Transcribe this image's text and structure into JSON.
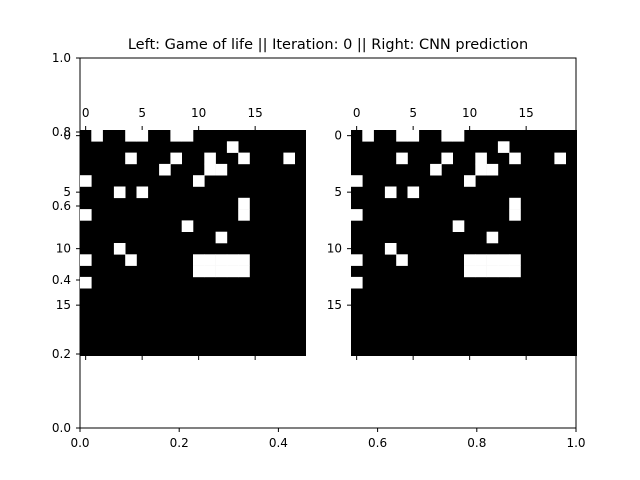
{
  "chart_data": {
    "type": "heatmap",
    "title": "Left: Game of life || Iteration: 0 || Right: CNN prediction",
    "outer_axes": {
      "xlim": [
        0.0,
        1.0
      ],
      "ylim": [
        0.0,
        1.0
      ],
      "x_ticks": [
        0.0,
        0.2,
        0.4,
        0.6,
        0.8,
        1.0
      ],
      "x_tick_labels": [
        "0.0",
        "0.2",
        "0.4",
        "0.6",
        "0.8",
        "1.0"
      ],
      "y_ticks": [
        0.0,
        0.2,
        0.4,
        0.6,
        0.8,
        1.0
      ],
      "y_tick_labels": [
        "0.0",
        "0.2",
        "0.4",
        "0.6",
        "0.8",
        "1.0"
      ]
    },
    "panels": [
      {
        "name": "Game of life",
        "cols": 20,
        "rows": 20,
        "x_ticks": [
          0,
          5,
          10,
          15
        ],
        "x_tick_labels": [
          "0",
          "5",
          "10",
          "15"
        ],
        "y_ticks": [
          0,
          5,
          10,
          15
        ],
        "y_tick_labels": [
          "0",
          "5",
          "10",
          "15"
        ],
        "grid": [
          "01001100110000000000",
          "00000000000001000000",
          "00001000100100100010",
          "00000001000110000000",
          "10000000001000000000",
          "00010100000000000000",
          "00000000000000100000",
          "10000000000000100000",
          "00000000010000000000",
          "00000000000010000000",
          "00010000000000000000",
          "10001000001111100000",
          "00000000001111100000",
          "10000000000000000000",
          "00000000000000000000",
          "00000000000000000000",
          "00000000000000000000",
          "00000000000000000000",
          "00000000000000000000",
          "00000000000000000000"
        ]
      },
      {
        "name": "CNN prediction",
        "cols": 20,
        "rows": 20,
        "x_ticks": [
          0,
          5,
          10,
          15
        ],
        "x_tick_labels": [
          "0",
          "5",
          "10",
          "15"
        ],
        "y_ticks": [
          0,
          5,
          10,
          15
        ],
        "y_tick_labels": [
          "0",
          "5",
          "10",
          "15"
        ],
        "grid": [
          "01001100110000000000",
          "00000000000001000000",
          "00001000100100100010",
          "00000001000110000000",
          "10000000001000000000",
          "00010100000000000000",
          "00000000000000100000",
          "10000000000000100000",
          "00000000010000000000",
          "00000000000010000000",
          "00010000000000000000",
          "10001000001111100000",
          "00000000001111100000",
          "10000000000000000000",
          "00000000000000000000",
          "00000000000000000000",
          "00000000000000000000",
          "00000000000000000000",
          "00000000000000000000",
          "00000000000000000000"
        ]
      }
    ]
  }
}
